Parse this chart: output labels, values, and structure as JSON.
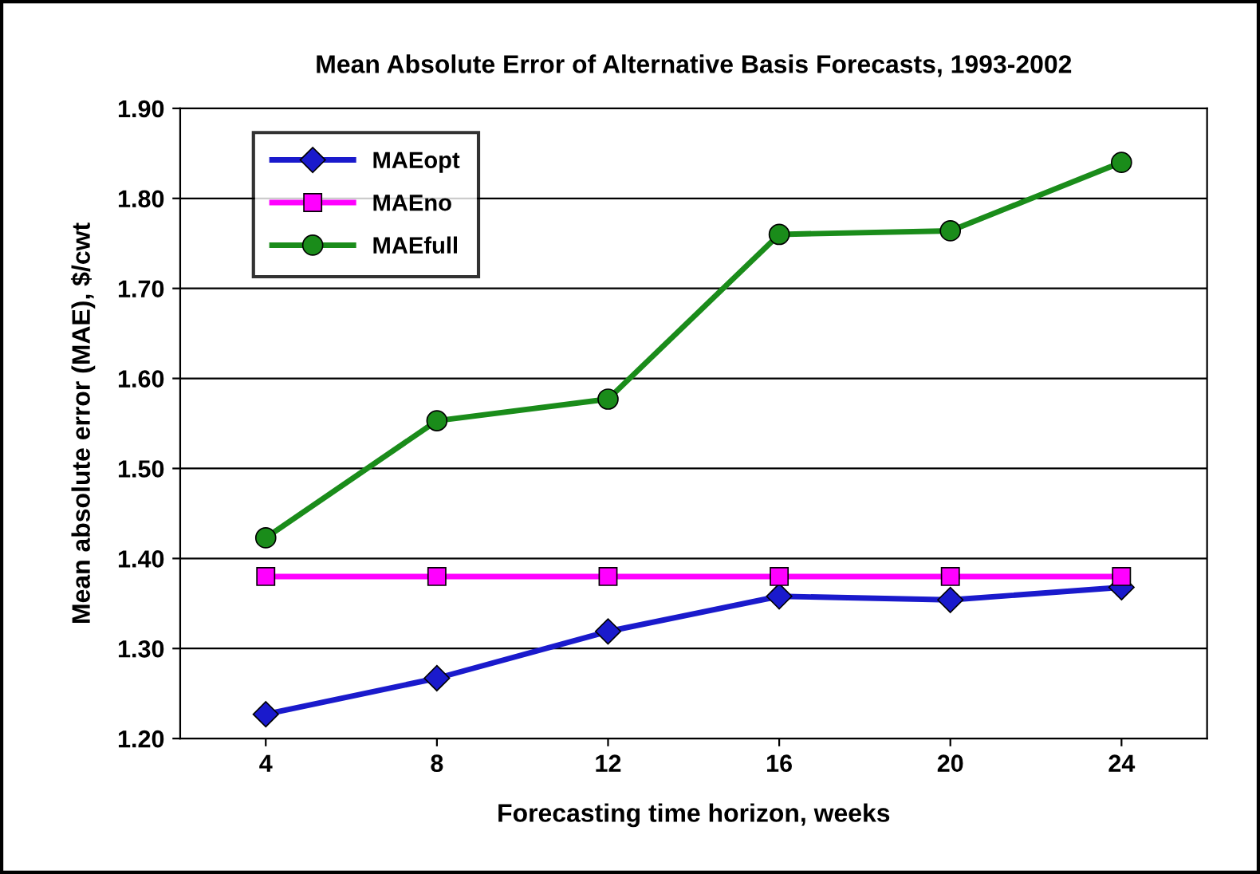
{
  "chart_data": {
    "type": "line",
    "title": "Mean Absolute Error of Alternative Basis Forecasts, 1993-2002",
    "xlabel": "Forecasting time horizon, weeks",
    "ylabel": "Mean absolute error (MAE), $/cwt",
    "categories": [
      "4",
      "8",
      "12",
      "16",
      "20",
      "24"
    ],
    "series": [
      {
        "name": "MAEopt",
        "color": "#1a1acc",
        "marker": "diamond",
        "values": [
          1.227,
          1.267,
          1.319,
          1.358,
          1.354,
          1.368
        ]
      },
      {
        "name": "MAEno",
        "color": "#ff00ff",
        "marker": "square",
        "values": [
          1.38,
          1.38,
          1.38,
          1.38,
          1.38,
          1.38
        ]
      },
      {
        "name": "MAEfull",
        "color": "#1a8c1a",
        "marker": "circle",
        "values": [
          1.423,
          1.553,
          1.577,
          1.76,
          1.764,
          1.84
        ]
      }
    ],
    "ylim": [
      1.2,
      1.9
    ],
    "yticks": [
      {
        "value": 1.2,
        "label": "1.20"
      },
      {
        "value": 1.3,
        "label": "1.30"
      },
      {
        "value": 1.4,
        "label": "1.40"
      },
      {
        "value": 1.5,
        "label": "1.50"
      },
      {
        "value": 1.6,
        "label": "1.60"
      },
      {
        "value": 1.7,
        "label": "1.70"
      },
      {
        "value": 1.8,
        "label": "1.80"
      },
      {
        "value": 1.9,
        "label": "1.90"
      }
    ],
    "grid": "y",
    "legend": "top left",
    "line_style": "solid"
  }
}
